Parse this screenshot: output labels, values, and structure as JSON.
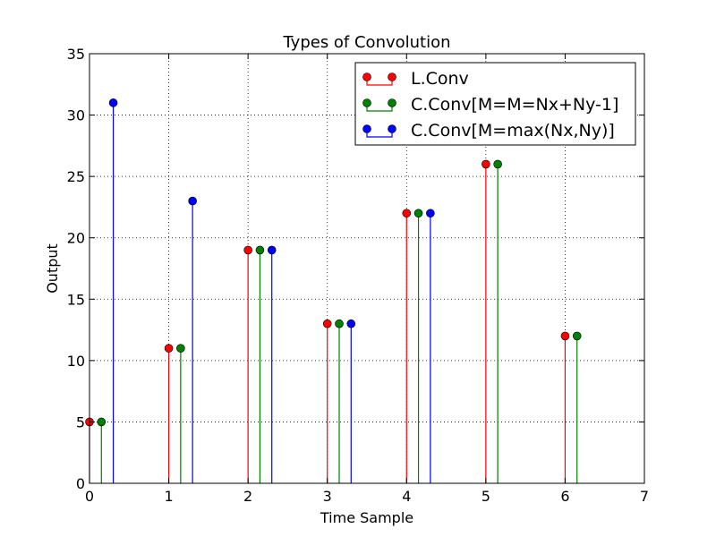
{
  "chart_data": {
    "type": "stem",
    "title": "Types of Convolution",
    "xlabel": "Time Sample",
    "ylabel": "Output",
    "xlim": [
      0,
      7
    ],
    "ylim": [
      0,
      35
    ],
    "xticks": [
      0,
      1,
      2,
      3,
      4,
      5,
      6,
      7
    ],
    "yticks": [
      0,
      5,
      10,
      15,
      20,
      25,
      30,
      35
    ],
    "grid": true,
    "legend_position": "top-right",
    "series": [
      {
        "name": "L.Conv",
        "color": "#ff0000",
        "x": [
          0,
          1,
          2,
          3,
          4,
          5,
          6
        ],
        "values": [
          5,
          11,
          19,
          13,
          22,
          26,
          12
        ]
      },
      {
        "name": "C.Conv[M=M=Nx+Ny-1]",
        "color": "#008000",
        "x": [
          0.15,
          1.15,
          2.15,
          3.15,
          4.15,
          5.15,
          6.15
        ],
        "values": [
          5,
          11,
          19,
          13,
          22,
          26,
          12
        ]
      },
      {
        "name": "C.Conv[M=max(Nx,Ny)]",
        "color": "#0000ff",
        "x": [
          0.3,
          1.3,
          2.3,
          3.3,
          4.3
        ],
        "values": [
          31,
          23,
          19,
          13,
          22
        ]
      }
    ]
  }
}
